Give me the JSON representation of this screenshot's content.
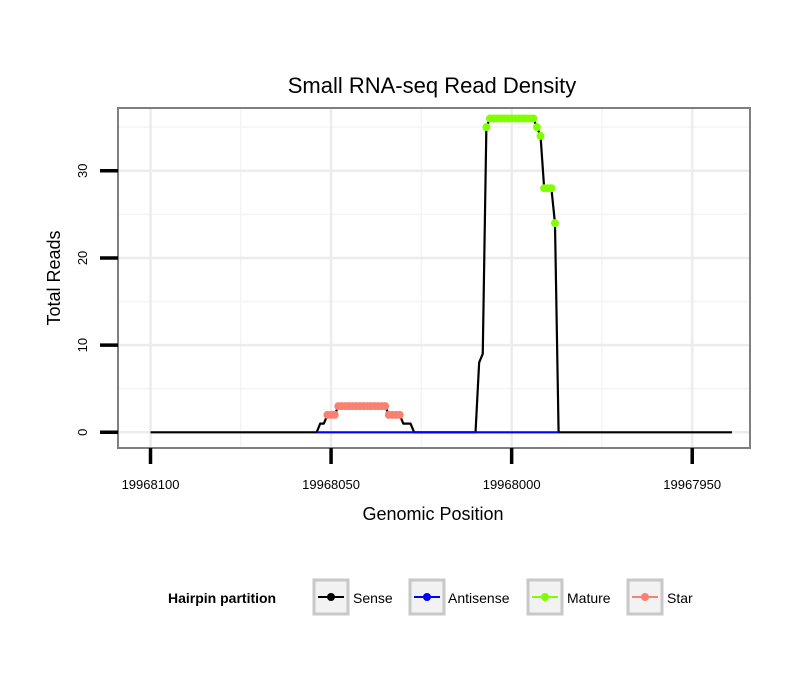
{
  "chart_data": {
    "type": "line",
    "title": "Small RNA-seq Read Density",
    "xlabel": "Genomic Position",
    "ylabel": "Total Reads",
    "xlim": [
      19968109,
      19967934
    ],
    "ylim": [
      -1.8,
      37.2
    ],
    "x_reversed": true,
    "x_ticks": [
      19968100,
      19968050,
      19968000,
      19967950
    ],
    "x_tick_labels": [
      "19968100",
      "19968050",
      "19968000",
      "19967950"
    ],
    "y_ticks": [
      0,
      10,
      20,
      30
    ],
    "y_tick_labels": [
      "0",
      "10",
      "20",
      "30"
    ],
    "grid": true,
    "legend": {
      "title": "Hairpin partition",
      "position": "bottom",
      "entries": [
        {
          "name": "Sense",
          "color": "#000000"
        },
        {
          "name": "Antisense",
          "color": "#0000ff"
        },
        {
          "name": "Mature",
          "color": "#7fff00"
        },
        {
          "name": "Star",
          "color": "#fa8072"
        }
      ]
    },
    "series": [
      {
        "name": "Sense",
        "color": "#000000",
        "points": [
          [
            19968100,
            0
          ],
          [
            19968054,
            0
          ],
          [
            19968053,
            1
          ],
          [
            19968052,
            1
          ],
          [
            19968051,
            2
          ],
          [
            19968049,
            2
          ],
          [
            19968048,
            3
          ],
          [
            19968035,
            3
          ],
          [
            19968034,
            2
          ],
          [
            19968031,
            2
          ],
          [
            19968030,
            1
          ],
          [
            19968028,
            1
          ],
          [
            19968027,
            0
          ],
          [
            19968010,
            0
          ],
          [
            19968009,
            8
          ],
          [
            19968008,
            9
          ],
          [
            19968007,
            35
          ],
          [
            19968006,
            36
          ],
          [
            19967994,
            36
          ],
          [
            19967993,
            35
          ],
          [
            19967992,
            34
          ],
          [
            19967991,
            28
          ],
          [
            19967989,
            28
          ],
          [
            19967988,
            24
          ],
          [
            19967987,
            0
          ],
          [
            19967939,
            0
          ]
        ]
      },
      {
        "name": "Antisense",
        "color": "#0000ff",
        "points": [
          [
            19968054,
            0
          ],
          [
            19968027,
            0
          ],
          [
            19968010,
            0
          ],
          [
            19967987,
            0
          ]
        ]
      },
      {
        "name": "Mature",
        "color": "#7fff00",
        "points": [
          [
            19968007,
            35
          ],
          [
            19968006,
            36
          ],
          [
            19968005,
            36
          ],
          [
            19968004,
            36
          ],
          [
            19968003,
            36
          ],
          [
            19968002,
            36
          ],
          [
            19968001,
            36
          ],
          [
            19968000,
            36
          ],
          [
            19967999,
            36
          ],
          [
            19967998,
            36
          ],
          [
            19967997,
            36
          ],
          [
            19967996,
            36
          ],
          [
            19967995,
            36
          ],
          [
            19967994,
            36
          ],
          [
            19967993,
            35
          ],
          [
            19967992,
            34
          ],
          [
            19967991,
            28
          ],
          [
            19967990,
            28
          ],
          [
            19967989,
            28
          ],
          [
            19967988,
            24
          ]
        ]
      },
      {
        "name": "Star",
        "color": "#fa8072",
        "points": [
          [
            19968051,
            2
          ],
          [
            19968050,
            2
          ],
          [
            19968049,
            2
          ],
          [
            19968048,
            3
          ],
          [
            19968047,
            3
          ],
          [
            19968046,
            3
          ],
          [
            19968045,
            3
          ],
          [
            19968044,
            3
          ],
          [
            19968043,
            3
          ],
          [
            19968042,
            3
          ],
          [
            19968041,
            3
          ],
          [
            19968040,
            3
          ],
          [
            19968039,
            3
          ],
          [
            19968038,
            3
          ],
          [
            19968037,
            3
          ],
          [
            19968036,
            3
          ],
          [
            19968035,
            3
          ],
          [
            19968034,
            2
          ],
          [
            19968033,
            2
          ],
          [
            19968032,
            2
          ],
          [
            19968031,
            2
          ]
        ]
      }
    ]
  }
}
